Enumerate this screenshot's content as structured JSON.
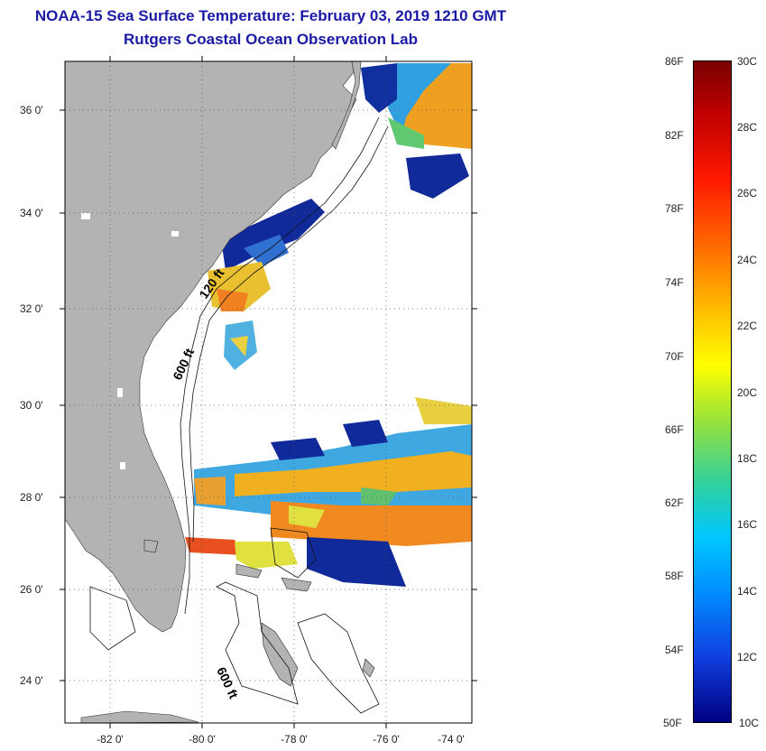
{
  "header": {
    "title_line1": "NOAA-15 Sea Surface Temperature:  February 03, 2019 1210 GMT",
    "title_line2": "Rutgers Coastal Ocean Observation Lab"
  },
  "map": {
    "lat_ticks": [
      "36 0'",
      "34 0'",
      "32 0'",
      "30 0'",
      "28 0'",
      "26 0'",
      "24 0'"
    ],
    "lon_ticks": [
      "-82 0'",
      "-80 0'",
      "-78 0'",
      "-76 0'",
      "-74 0'"
    ],
    "contour_labels": [
      "120 ft",
      "600 ft",
      "600 ft"
    ],
    "land_color": "#b3b3b3",
    "ocean_color": "#ffffff"
  },
  "colorbar": {
    "fahrenheit_labels": [
      "86F",
      "82F",
      "78F",
      "74F",
      "70F",
      "66F",
      "62F",
      "58F",
      "54F",
      "50F"
    ],
    "celsius_labels": [
      "30C",
      "28C",
      "26C",
      "24C",
      "22C",
      "20C",
      "18C",
      "16C",
      "14C",
      "12C",
      "10C"
    ]
  }
}
